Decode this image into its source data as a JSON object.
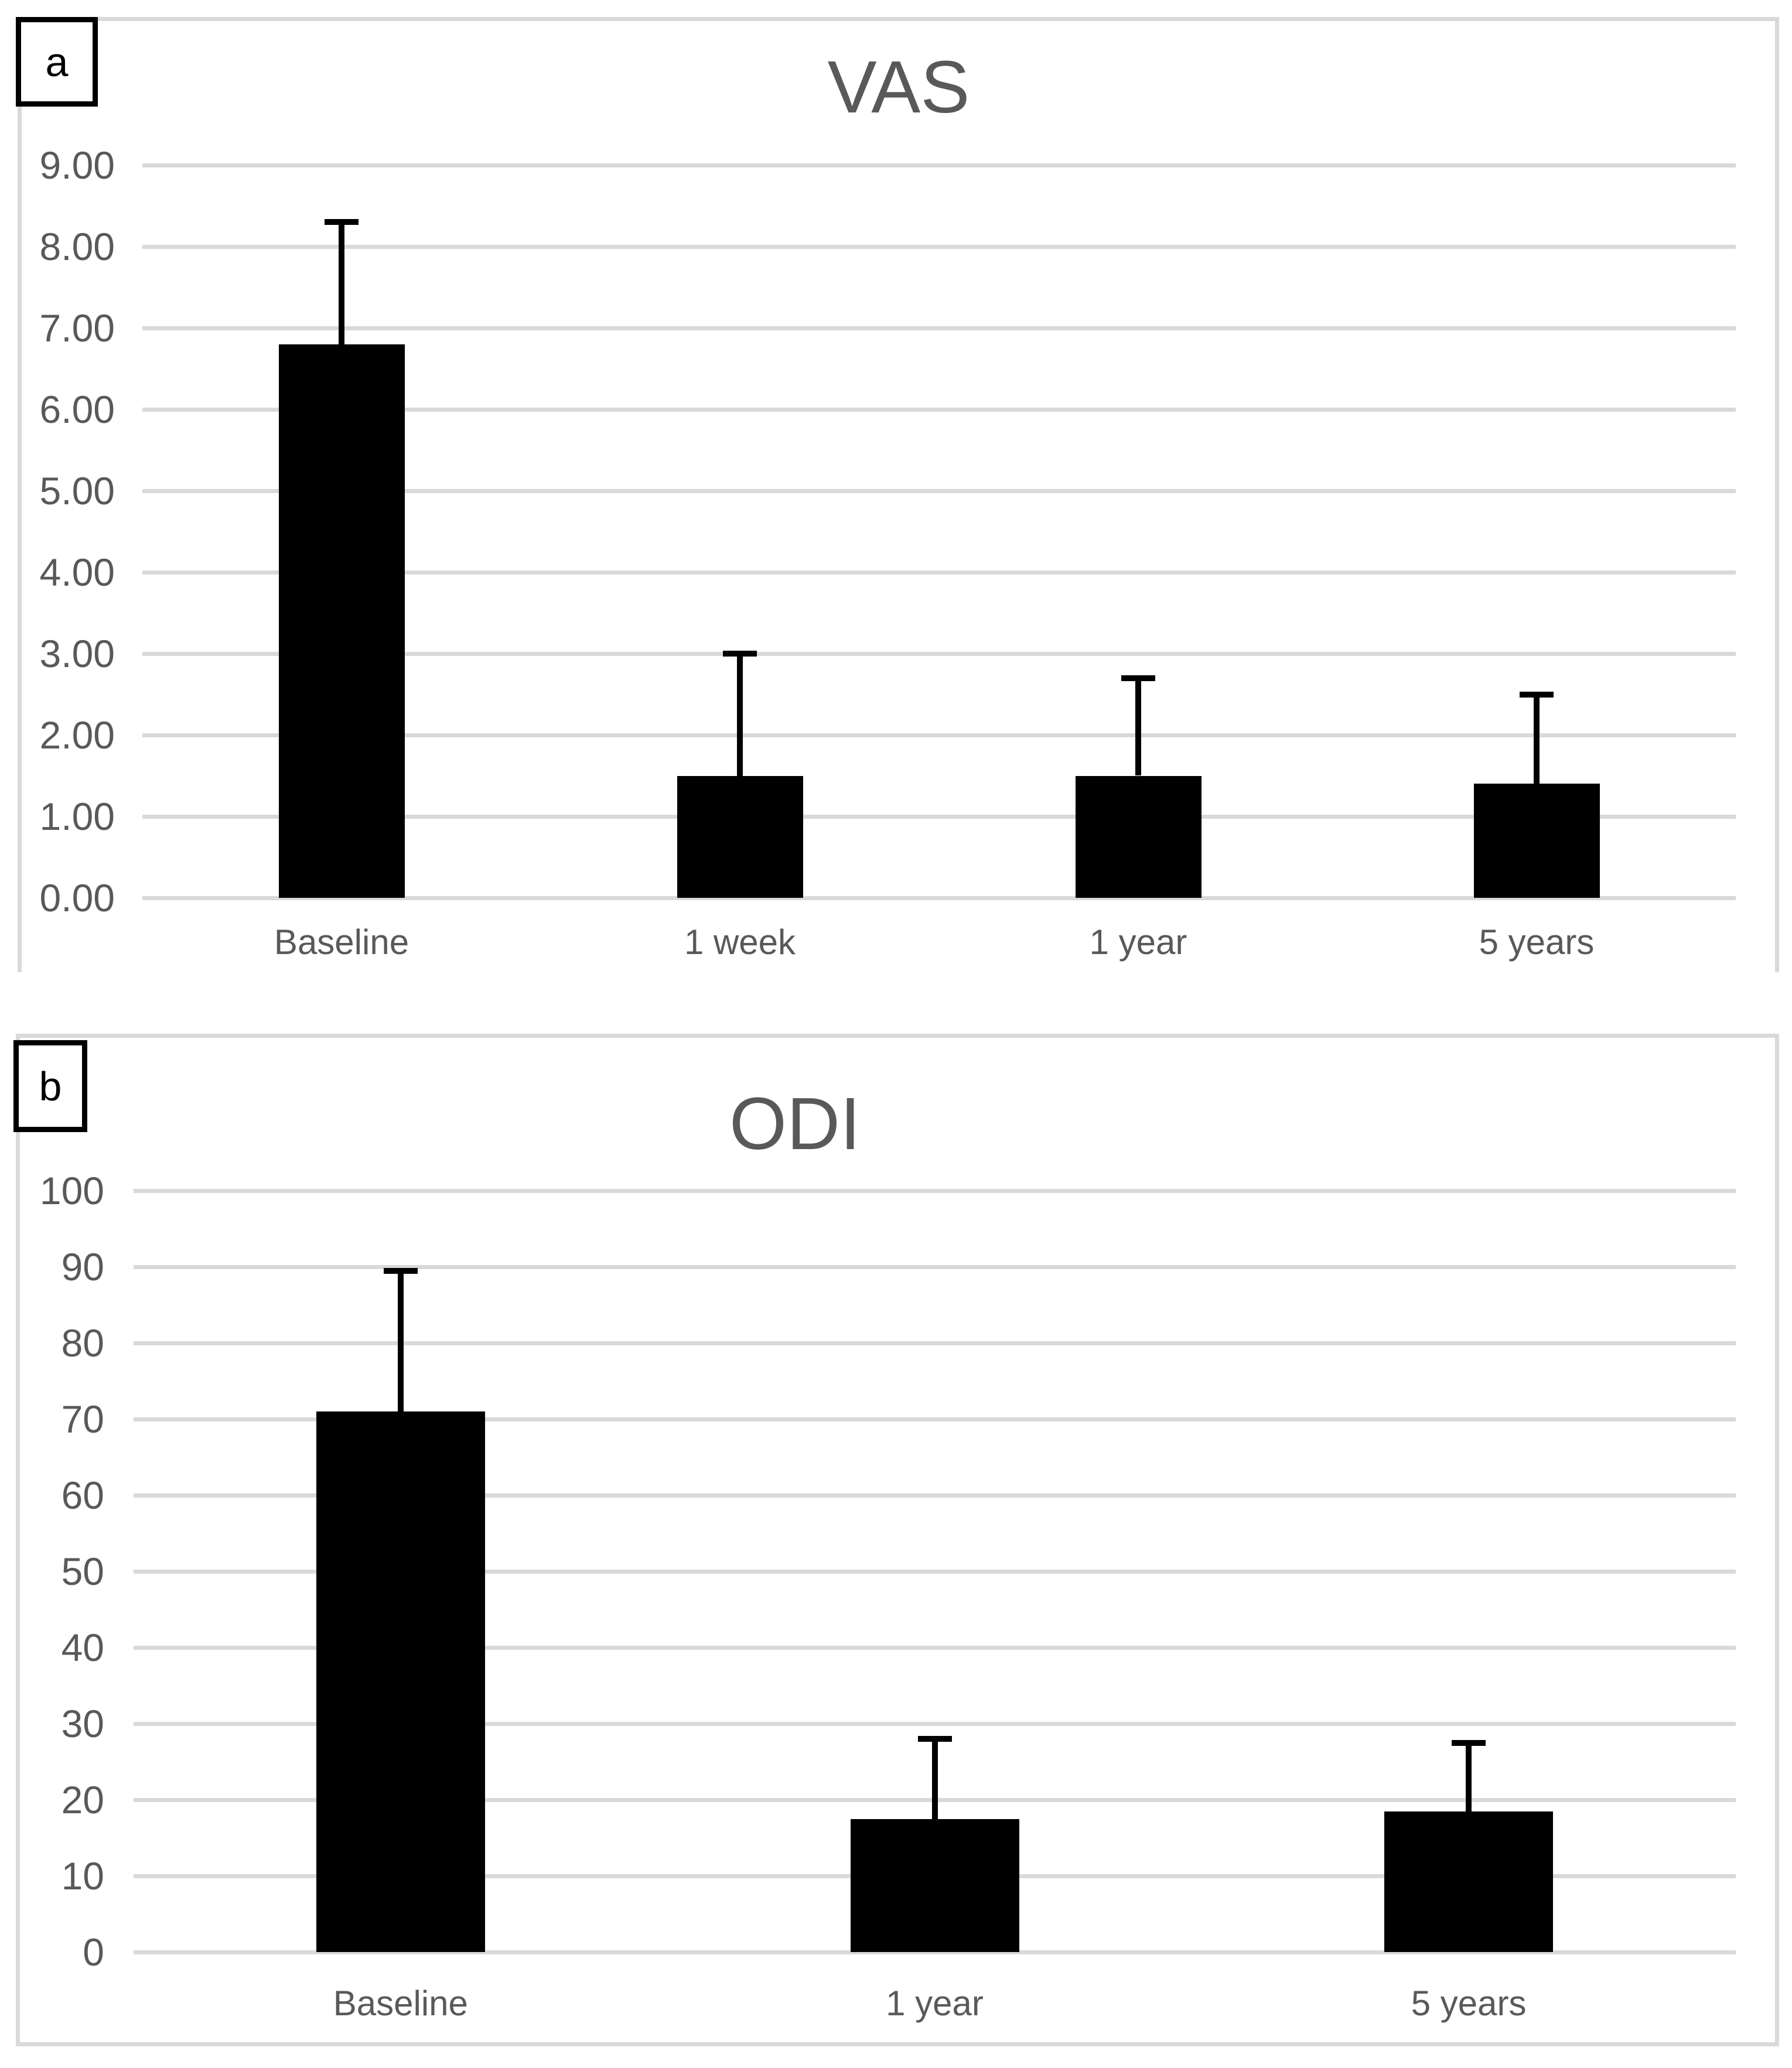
{
  "figure": {
    "panels": [
      {
        "panel_label": "a",
        "title": "VAS"
      },
      {
        "panel_label": "b",
        "title": "ODI"
      }
    ]
  },
  "colors": {
    "bar": "#000000",
    "error_bar": "#000000",
    "gridline": "#d9d9d9",
    "panel_border": "#d9d9d9",
    "axis_text": "#595959",
    "title_text": "#595959",
    "panel_label_text": "#000000",
    "background": "#ffffff"
  },
  "chart_data": [
    {
      "type": "bar",
      "panel_label": "a",
      "title": "VAS",
      "categories": [
        "Baseline",
        "1 week",
        "1 year",
        "5 years"
      ],
      "values": [
        6.8,
        1.5,
        1.5,
        1.4
      ],
      "error_whisker_top": [
        8.3,
        3.0,
        2.7,
        2.5
      ],
      "ylim": [
        0,
        9
      ],
      "ytick_step": 1,
      "ytick_labels": [
        "0.00",
        "1.00",
        "2.00",
        "3.00",
        "4.00",
        "5.00",
        "6.00",
        "7.00",
        "8.00",
        "9.00"
      ],
      "xlabel": "",
      "ylabel": "",
      "grid": true,
      "legend": "none",
      "bar_color": "#000000"
    },
    {
      "type": "bar",
      "panel_label": "b",
      "title": "ODI",
      "categories": [
        "Baseline",
        "1 year",
        "5 years"
      ],
      "values": [
        71,
        17.5,
        18.5
      ],
      "error_whisker_top": [
        89.5,
        28,
        27.5
      ],
      "ylim": [
        0,
        100
      ],
      "ytick_step": 10,
      "ytick_labels": [
        "0",
        "10",
        "20",
        "30",
        "40",
        "50",
        "60",
        "70",
        "80",
        "90",
        "100"
      ],
      "xlabel": "",
      "ylabel": "",
      "grid": true,
      "legend": "none",
      "bar_color": "#000000"
    }
  ]
}
